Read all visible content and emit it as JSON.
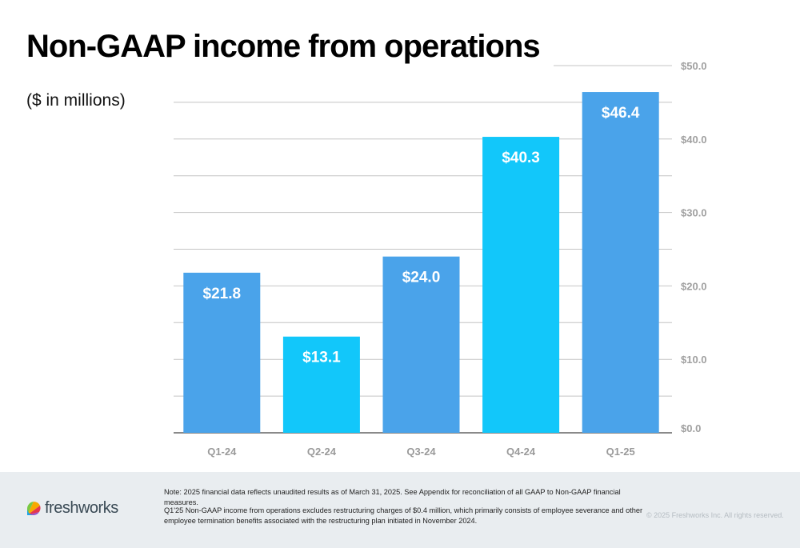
{
  "title": "Non-GAAP income from operations",
  "subtitle": "($ in millions)",
  "chart_data": {
    "type": "bar",
    "categories": [
      "Q1-24",
      "Q2-24",
      "Q3-24",
      "Q4-24",
      "Q1-25"
    ],
    "values": [
      21.8,
      13.1,
      24.0,
      40.3,
      46.4
    ],
    "data_labels": [
      "$21.8",
      "$13.1",
      "$24.0",
      "$40.3",
      "$46.4"
    ],
    "bar_colors": [
      "#4aa3ea",
      "#12c7fa",
      "#4aa3ea",
      "#12c7fa",
      "#4aa3ea"
    ],
    "ylim": [
      0,
      50
    ],
    "yticks": [
      0,
      10,
      20,
      30,
      40,
      50
    ],
    "ytick_labels": [
      "$0.0",
      "$10.0",
      "$20.0",
      "$30.0",
      "$40.0",
      "$50.0"
    ],
    "y_axis_position": "right",
    "grid": true,
    "xlabel": "",
    "ylabel": ""
  },
  "footer": {
    "logo_text": "freshworks",
    "note_1": "Note: 2025 financial data reflects unaudited results as of March 31, 2025. See Appendix for reconciliation of all GAAP to Non-GAAP financial measures.",
    "note_2": "Q1'25 Non-GAAP income from operations excludes restructuring charges of $0.4 million, which primarily consists of employee severance and other employee termination benefits associated with the restructuring plan initiated in November 2024.",
    "copyright": "© 2025 Freshworks Inc. All rights reserved."
  },
  "colors": {
    "bar_primary": "#4aa3ea",
    "bar_secondary": "#12c7fa",
    "grid": "#c8c8c8",
    "axis_text": "#a0a0a0"
  }
}
